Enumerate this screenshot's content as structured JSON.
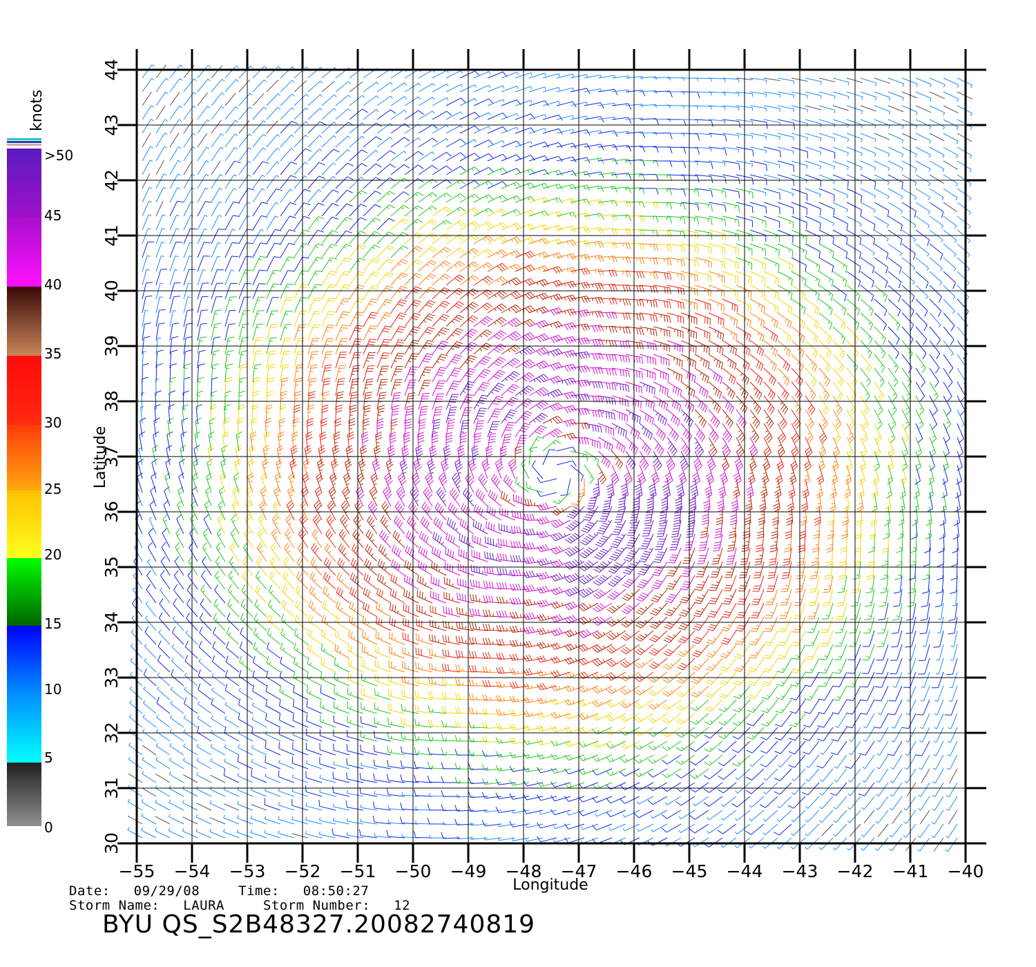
{
  "map": {
    "xlabel": "Longitude",
    "ylabel": "Latitude",
    "lon_ticks": [
      "−55",
      "−54",
      "−53",
      "−52",
      "−51",
      "−50",
      "−49",
      "−48",
      "−47",
      "−46",
      "−45",
      "−44",
      "−43",
      "−42",
      "−41",
      "−40"
    ],
    "lat_ticks": [
      "30",
      "31",
      "32",
      "33",
      "34",
      "35",
      "36",
      "37",
      "38",
      "39",
      "40",
      "41",
      "42",
      "43",
      "44"
    ],
    "lon_range": [
      -55,
      -40
    ],
    "lat_range": [
      30,
      44
    ],
    "storm_center": {
      "lon": -47.4,
      "lat": 36.7
    },
    "field": "wind barbs"
  },
  "colorbar": {
    "title": "knots",
    "labels": [
      ">50",
      "45",
      "40",
      "35",
      "30",
      "25",
      "20",
      "15",
      "10",
      "5",
      "0"
    ],
    "bands": [
      {
        "range": "45-50+",
        "top": "#5a1bbf",
        "bottom": "#9a10c8"
      },
      {
        "range": "40-45",
        "top": "#b010d0",
        "bottom": "#ff10ff"
      },
      {
        "range": "35-40",
        "top": "#3a0a06",
        "bottom": "#c8865a"
      },
      {
        "range": "30-35",
        "top": "#ff0a0a",
        "bottom": "#ff3010"
      },
      {
        "range": "25-30",
        "top": "#ff3c0a",
        "bottom": "#ffa010"
      },
      {
        "range": "20-25",
        "top": "#ffc000",
        "bottom": "#ffff20"
      },
      {
        "range": "15-20",
        "top": "#00ff00",
        "bottom": "#006400"
      },
      {
        "range": "10-15",
        "top": "#0000ff",
        "bottom": "#0090ff"
      },
      {
        "range": "5-10",
        "top": "#0090ff",
        "bottom": "#00ffff"
      },
      {
        "range": "0-5",
        "top": "#202020",
        "bottom": "#909090"
      }
    ]
  },
  "footer": {
    "date_label": "Date:",
    "date_value": "09/29/08",
    "time_label": "Time:",
    "time_value": "08:50:27",
    "storm_name_label": "Storm Name:",
    "storm_name_value": "LAURA",
    "storm_number_label": "Storm Number:",
    "storm_number_value": "12",
    "product_id": "BYU QS_S2B48327.20082740819"
  }
}
